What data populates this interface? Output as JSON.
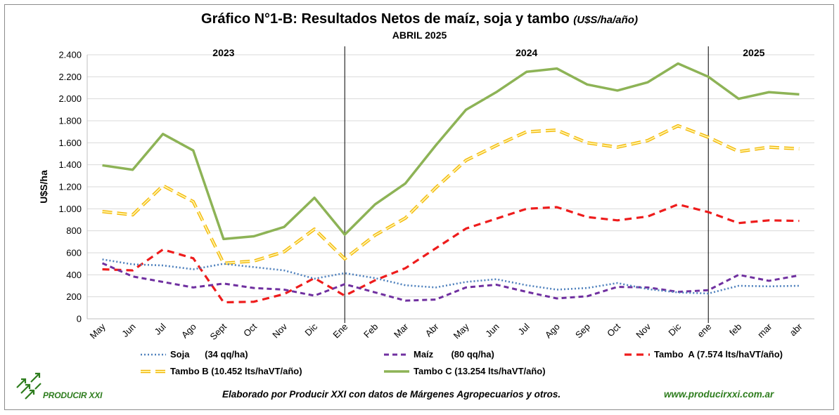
{
  "title": "Gráfico N°1-B: Resultados Netos de maíz, soja y tambo",
  "title_unit": "(U$S/ha/año)",
  "subtitle": "ABRIL 2025",
  "footer_credit": "Elaborado por Producir XXI con datos de Márgenes Agropecuarios y otros.",
  "footer_url": "www.producirxxi.com.ar",
  "logo_text": "PRODUCIR XXI",
  "chart_data": {
    "type": "line",
    "ylabel": "U$S/ha",
    "xlabel": "",
    "ylim": [
      0,
      2400
    ],
    "yticks": [
      0,
      200,
      400,
      600,
      800,
      1000,
      1200,
      1400,
      1600,
      1800,
      2000,
      2200,
      2400
    ],
    "ytick_labels": [
      "0",
      "200",
      "400",
      "600",
      "800",
      "1.000",
      "1.200",
      "1.400",
      "1.600",
      "1.800",
      "2.000",
      "2.200",
      "2.400"
    ],
    "grid": "horizontal",
    "legend_position": "bottom",
    "categories": [
      "May",
      "Jun",
      "Jul",
      "Ago",
      "Sept",
      "Oct",
      "Nov",
      "Dic",
      "Ene",
      "Feb",
      "Mar",
      "Abr",
      "May",
      "Jun",
      "Jul",
      "Ago",
      "Sep",
      "Oct",
      "Nov",
      "Dic",
      "ene",
      "feb",
      "mar",
      "abr"
    ],
    "year_labels": [
      {
        "label": "2023",
        "start": 0,
        "end": 8
      },
      {
        "label": "2024",
        "start": 8,
        "end": 20
      },
      {
        "label": "2025",
        "start": 20,
        "end": 23
      }
    ],
    "separators": [
      8,
      20
    ],
    "series": [
      {
        "name": "Soja      (34 qq/ha)",
        "color": "#4f81bd",
        "style": "dotted",
        "values": [
          540,
          495,
          485,
          450,
          500,
          470,
          440,
          365,
          415,
          370,
          305,
          285,
          335,
          360,
          305,
          265,
          280,
          325,
          270,
          240,
          230,
          300,
          295,
          300
        ]
      },
      {
        "name": "Maíz       (80 qq/ha)",
        "color": "#7030a0",
        "style": "dashed",
        "values": [
          505,
          385,
          335,
          285,
          320,
          280,
          265,
          210,
          315,
          240,
          165,
          175,
          285,
          310,
          245,
          185,
          205,
          290,
          285,
          245,
          260,
          400,
          345,
          395
        ]
      },
      {
        "name": "Tambo  A (7.574 lts/haVT/año)",
        "color": "#ee1c1c",
        "style": "longdash",
        "values": [
          450,
          440,
          630,
          550,
          150,
          155,
          225,
          370,
          210,
          350,
          460,
          640,
          820,
          910,
          1000,
          1015,
          925,
          895,
          930,
          1040,
          970,
          870,
          895,
          890
        ]
      },
      {
        "name": "Tambo B (10.452 lts/haVT/año)",
        "color": "#ffd92b",
        "style": "outlined",
        "values": [
          975,
          945,
          1210,
          1065,
          505,
          525,
          610,
          815,
          545,
          760,
          915,
          1190,
          1440,
          1575,
          1700,
          1715,
          1600,
          1560,
          1620,
          1755,
          1650,
          1520,
          1560,
          1545
        ]
      },
      {
        "name": "Tambo C (13.254 lts/haVT/año)",
        "color": "#8db356",
        "style": "solid",
        "values": [
          1395,
          1355,
          1680,
          1530,
          725,
          750,
          835,
          1100,
          765,
          1040,
          1230,
          1575,
          1900,
          2060,
          2245,
          2275,
          2130,
          2075,
          2150,
          2320,
          2200,
          2000,
          2060,
          2040
        ]
      }
    ]
  }
}
